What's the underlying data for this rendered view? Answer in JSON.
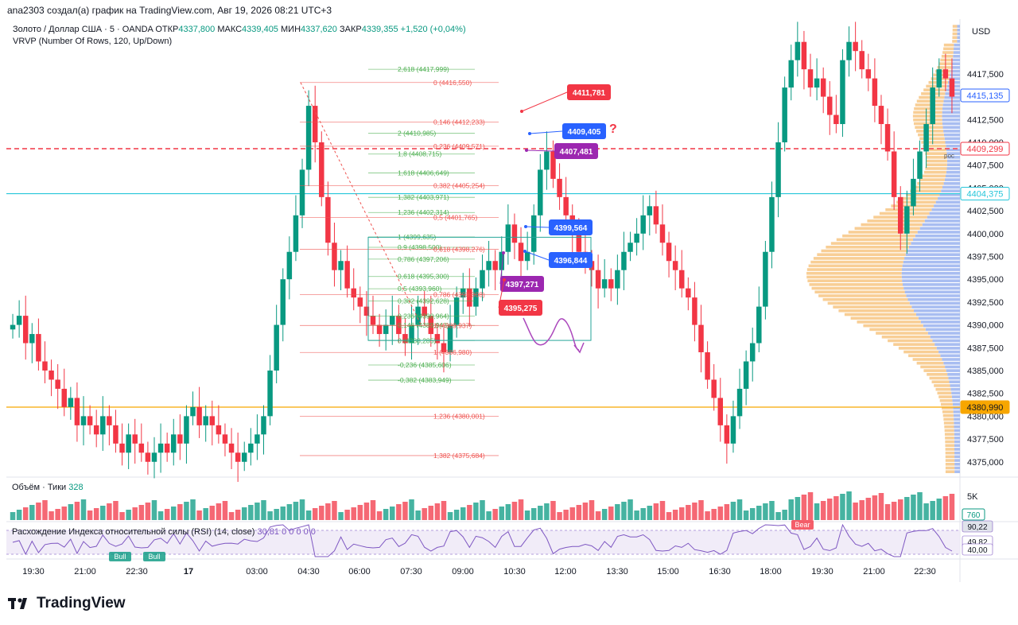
{
  "caption": "ana2303 создал(а) график на TradingView.com, Авг 19, 2026 08:21 UTC+3",
  "legend": {
    "symbol": "Золото / Доллар США · 5 · OANDA",
    "open_label": "ОТКР",
    "open": "4337,800",
    "high_label": "МАКС",
    "high": "4339,405",
    "low_label": "МИН",
    "low": "4337,620",
    "close_label": "ЗАКР",
    "close": "4339,355",
    "change": "+1,520 (+0,04%)"
  },
  "vrvp_label": "VRVP (Number Of Rows, 120, Up/Down)",
  "currency": "USD",
  "volume_label": "Объём · Тики",
  "volume_value": "328",
  "rsi_label": "Расхождение Индекса относительной силы (RSI) (14, close)",
  "rsi_value": "30,81",
  "rsi_extra": "0 0 0 0 0",
  "brand": "TradingView",
  "colors": {
    "up": "#089981",
    "down": "#f23645",
    "teal_line": "#26c6da",
    "orange_line": "#f7a600",
    "red_dash": "#f23645",
    "vp_up": "#9fb6f0",
    "vp_down": "#f7c98a"
  },
  "chart_data": [
    {
      "type": "candlestick",
      "title": "Золото / Доллар США · 5 · OANDA",
      "y_axis_ticks": [
        "4417,500",
        "4412,500",
        "4410,000",
        "4407,500",
        "4405,000",
        "4402,500",
        "4400,000",
        "4397,500",
        "4395,000",
        "4392,500",
        "4390,000",
        "4387,500",
        "4385,000",
        "4382,500",
        "4380,000",
        "4377,500",
        "4375,000"
      ],
      "price_tags": [
        {
          "label": "4415,135",
          "value": 4415.135,
          "color": "#2962ff",
          "style": "outline"
        },
        {
          "label": "4409,299",
          "value": 4409.299,
          "color": "#f23645",
          "style": "outline"
        },
        {
          "label": "4404,375",
          "value": 4404.375,
          "color": "#26c6da",
          "style": "outline"
        },
        {
          "label": "4380,990",
          "value": 4380.99,
          "color": "#f7a600",
          "style": "fill"
        }
      ],
      "x_axis_ticks": [
        "19:30",
        "21:00",
        "22:30",
        "17",
        "03:00",
        "04:30",
        "06:00",
        "07:30",
        "09:00",
        "10:30",
        "12:00",
        "13:30",
        "15:00",
        "16:30",
        "18:00",
        "19:30",
        "21:00",
        "22:30"
      ],
      "ylim": [
        4373.5,
        4423.5
      ],
      "horizontal_lines": [
        {
          "value": 4409.299,
          "color": "#f23645",
          "style": "dashed"
        },
        {
          "value": 4404.375,
          "color": "#26c6da",
          "style": "solid"
        },
        {
          "value": 4380.99,
          "color": "#f7a600",
          "style": "solid"
        }
      ],
      "fib_green": [
        {
          "label": "2,618 (4417,999)",
          "value": 4417.999
        },
        {
          "label": "2 (4410,985)",
          "value": 4410.985
        },
        {
          "label": "1,8 (4408,715)",
          "value": 4408.715
        },
        {
          "label": "1,618 (4406,649)",
          "value": 4406.649
        },
        {
          "label": "1,382 (4403,971)",
          "value": 4403.971
        },
        {
          "label": "1,236 (4402,314)",
          "value": 4402.314
        },
        {
          "label": "1 (4399,635)",
          "value": 4399.635
        },
        {
          "label": "0,9 (4398,500)",
          "value": 4398.5
        },
        {
          "label": "0,786 (4397,206)",
          "value": 4397.206
        },
        {
          "label": "0,618 (4395,300)",
          "value": 4395.3
        },
        {
          "label": "0,5 (4393,960)",
          "value": 4393.96
        },
        {
          "label": "0,382 (4392,628)",
          "value": 4392.628
        },
        {
          "label": "0,236 (4390,964)",
          "value": 4390.964
        },
        {
          "label": "0,146 (4389,943)",
          "value": 4389.943
        },
        {
          "label": "0 (4388,285)",
          "value": 4388.285
        },
        {
          "label": "-0,236 (4385,606)",
          "value": 4385.606
        },
        {
          "label": "-0,382 (4383,949)",
          "value": 4383.949
        }
      ],
      "fib_red": [
        {
          "label": "0 (4416,550)",
          "value": 4416.55
        },
        {
          "label": "0,146 (4412,233)",
          "value": 4412.233
        },
        {
          "label": "0,236 (4409,571)",
          "value": 4409.571
        },
        {
          "label": "0,382 (4405,254)",
          "value": 4405.254
        },
        {
          "label": "0,5 (4401,765)",
          "value": 4401.765
        },
        {
          "label": "0,618 (4398,276)",
          "value": 4398.276
        },
        {
          "label": "0,786 (4393,308)",
          "value": 4393.308
        },
        {
          "label": "1 (4389,937)",
          "value": 4389.937
        },
        {
          "label": "1 (4386,980)",
          "value": 4386.98
        },
        {
          "label": "1,236 (4380,001)",
          "value": 4380.001
        },
        {
          "label": "1,382 (4375,684)",
          "value": 4375.684
        }
      ],
      "callouts": [
        {
          "label": "4411,781",
          "value": 4411.781,
          "color": "#f23645"
        },
        {
          "label": "4409,405",
          "value": 4409.405,
          "color": "#2962ff"
        },
        {
          "label": "4407,481",
          "value": 4407.481,
          "color": "#9c27b0"
        },
        {
          "label": "4399,564",
          "value": 4399.564,
          "color": "#2962ff"
        },
        {
          "label": "4396,844",
          "value": 4396.844,
          "color": "#2962ff"
        },
        {
          "label": "4397,271",
          "value": 4397.271,
          "color": "#9c27b0"
        },
        {
          "label": "4395,275",
          "value": 4395.275,
          "color": "#f23645"
        }
      ],
      "question_mark": "?",
      "poc_label": "poc",
      "candles_close": [
        4390,
        4391,
        4388,
        4389,
        4386,
        4385,
        4384,
        4383,
        4381,
        4382,
        4379,
        4380,
        4379,
        4378,
        4380,
        4379,
        4377,
        4376,
        4378,
        4377,
        4376,
        4375,
        4376,
        4377,
        4376,
        4378,
        4377,
        4380,
        4381,
        4379,
        4380,
        4379,
        4378,
        4377,
        4376,
        4375,
        4376,
        4377,
        4378,
        4380,
        4385,
        4390,
        4395,
        4398,
        4402,
        4407,
        4414,
        4410,
        4404,
        4399,
        4396,
        4397,
        4394,
        4393,
        4392,
        4391,
        4390,
        4389,
        4390,
        4391,
        4389,
        4388,
        4390,
        4392,
        4391,
        4389,
        4388,
        4387,
        4390,
        4393,
        4394,
        4392,
        4394,
        4396,
        4397,
        4396,
        4398,
        4401,
        4399,
        4397,
        4398,
        4402,
        4407,
        4409,
        4406,
        4404,
        4402,
        4400,
        4398,
        4397,
        4396,
        4394,
        4395,
        4394,
        4396,
        4398,
        4399,
        4400,
        4402,
        4403,
        4401,
        4399,
        4397,
        4396,
        4394,
        4393,
        4390,
        4387,
        4384,
        4382,
        4379,
        4377,
        4380,
        4383,
        4386,
        4388,
        4392,
        4398,
        4404,
        4410,
        4416,
        4419,
        4421,
        4418,
        4416,
        4417,
        4415,
        4413,
        4412,
        4419,
        4421,
        4420,
        4418,
        4417,
        4414,
        4412,
        4409,
        4404,
        4400,
        4403,
        4406,
        4409,
        4412,
        4416,
        4418,
        4417,
        4415
      ],
      "volume_scale_label": "5K",
      "volume_last": "760",
      "rsi_tags": [
        "90,22",
        "49,82",
        "40,00"
      ],
      "rsi_annotations": [
        "Bear",
        "Bull",
        "Bull"
      ]
    }
  ]
}
